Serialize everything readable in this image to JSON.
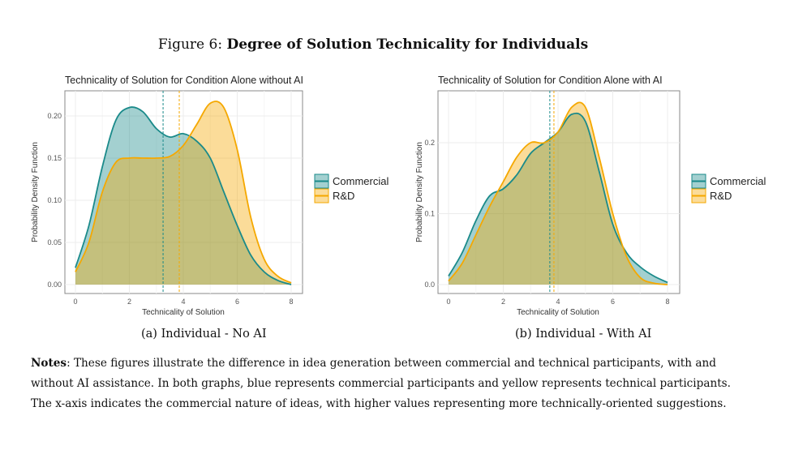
{
  "figure": {
    "label": "Figure 6:",
    "title": "Degree of Solution Technicality for Individuals"
  },
  "captions": [
    "(a) Individual - No AI",
    "(b) Individual - With AI"
  ],
  "notes": {
    "label": "Notes",
    "text": ": These figures illustrate the difference in idea generation between commercial and technical participants, with and without AI assistance.  In both graphs, blue represents commercial participants and yellow represents technical participants.  The x-axis indicates the commercial nature of ideas, with higher values representing more technically-oriented suggestions."
  },
  "colors": {
    "commercial": "#1a8a8a",
    "rd": "#f5a800"
  },
  "chart_data": [
    {
      "type": "area",
      "title": "Technicality of Solution for Condition Alone without AI",
      "xlabel": "Technicality of Solution",
      "ylabel": "Probability Density Function",
      "xlim": [
        0,
        8
      ],
      "ylim": [
        0,
        0.23
      ],
      "xticks": [
        0,
        2,
        4,
        6,
        8
      ],
      "yticks": [
        0,
        0.05,
        0.1,
        0.15,
        0.2
      ],
      "ytick_labels": [
        "0.00",
        "0.05",
        "0.10",
        "0.15",
        "0.20"
      ],
      "grid": true,
      "legend": "right",
      "x": [
        0,
        0.5,
        1,
        1.5,
        2,
        2.5,
        3,
        3.5,
        4,
        4.5,
        5,
        5.5,
        6,
        6.5,
        7,
        7.5,
        8
      ],
      "series": [
        {
          "name": "Commercial",
          "mean": 3.25,
          "values": [
            0.02,
            0.07,
            0.14,
            0.195,
            0.21,
            0.205,
            0.185,
            0.175,
            0.179,
            0.17,
            0.15,
            0.11,
            0.07,
            0.035,
            0.015,
            0.005,
            0
          ]
        },
        {
          "name": "R&D",
          "mean": 3.85,
          "values": [
            0.015,
            0.05,
            0.11,
            0.145,
            0.15,
            0.15,
            0.15,
            0.152,
            0.165,
            0.19,
            0.215,
            0.21,
            0.16,
            0.08,
            0.03,
            0.01,
            0.002
          ]
        }
      ]
    },
    {
      "type": "area",
      "title": "Technicality of Solution for Condition Alone with AI",
      "xlabel": "Technicality of Solution",
      "ylabel": "Probability Density Function",
      "xlim": [
        0,
        8
      ],
      "ylim": [
        -0.01,
        0.265
      ],
      "xticks": [
        0,
        2,
        4,
        6,
        8
      ],
      "yticks": [
        0,
        0.1,
        0.2
      ],
      "ytick_labels": [
        "0.0",
        "0.1",
        "0.2"
      ],
      "grid": true,
      "legend": "right",
      "x": [
        0,
        0.5,
        1,
        1.5,
        2,
        2.5,
        3,
        3.5,
        4,
        4.5,
        5,
        5.5,
        6,
        6.5,
        7,
        7.5,
        8
      ],
      "series": [
        {
          "name": "Commercial",
          "mean": 3.7,
          "values": [
            0.012,
            0.045,
            0.09,
            0.125,
            0.135,
            0.155,
            0.185,
            0.2,
            0.215,
            0.24,
            0.23,
            0.16,
            0.085,
            0.045,
            0.025,
            0.012,
            0.003
          ]
        },
        {
          "name": "R&D",
          "mean": 3.85,
          "values": [
            0.005,
            0.03,
            0.07,
            0.11,
            0.145,
            0.18,
            0.2,
            0.2,
            0.215,
            0.25,
            0.25,
            0.18,
            0.1,
            0.04,
            0.01,
            0.002,
            0
          ]
        }
      ]
    }
  ]
}
